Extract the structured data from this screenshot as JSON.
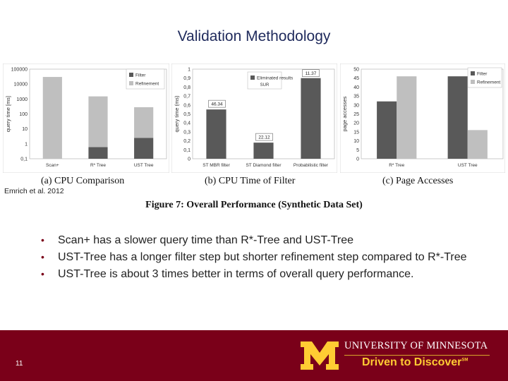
{
  "slide": {
    "title": "Validation Methodology",
    "credit": "Emrich et al. 2012",
    "page_number": "11",
    "bullets": [
      "Scan+ has a slower query time than R*-Tree and UST-Tree",
      "UST-Tree has a longer filter step but shorter refinement step compared to R*-Tree",
      "UST-Tree is about 3 times better in terms of overall query performance."
    ],
    "bullet_glyph": "•"
  },
  "figure": {
    "caption": "Figure 7: Overall Performance (Synthetic Data Set)",
    "sub_captions": [
      "(a) CPU Comparison",
      "(b) CPU Time of Filter",
      "(c) Page Accesses"
    ]
  },
  "footer": {
    "university": "UNIVERSITY OF MINNESOTA",
    "tagline": "Driven to Discover",
    "tagline_mark": "SM",
    "colors": {
      "maroon": "#7a0019",
      "gold": "#ffcc33"
    }
  },
  "chart_data": [
    {
      "type": "bar",
      "stacked": true,
      "log_scale": true,
      "ylabel": "query time [ms]",
      "ylim": [
        0.1,
        100000
      ],
      "y_ticks": [
        "100000",
        "10000",
        "1000",
        "100",
        "10",
        "1",
        "0,1"
      ],
      "categories": [
        "Scan+",
        "R* Tree",
        "UST Tree"
      ],
      "legend_position": "top-right",
      "series": [
        {
          "name": "Filter",
          "color": "#595959",
          "values": [
            0.1,
            0.6,
            2.5
          ]
        },
        {
          "name": "Refinement",
          "color": "#bfbfbf",
          "values": [
            30000,
            1500,
            280
          ]
        }
      ]
    },
    {
      "type": "bar",
      "ylabel": "query time (ms)",
      "ylim": [
        0,
        1
      ],
      "y_ticks": [
        "1",
        "0,9",
        "0,8",
        "0,7",
        "0,6",
        "0,5",
        "0,4",
        "0,3",
        "0,2",
        "0,1",
        "0"
      ],
      "categories": [
        "ST MBR filter",
        "ST Diamond filter",
        "Probabilistic filter"
      ],
      "legend_position": "top",
      "series": [
        {
          "name": "Eliminated results",
          "legend_sub": "SUR",
          "color": "#595959",
          "values": [
            0.55,
            0.18,
            0.9
          ]
        }
      ],
      "data_labels": [
        "46.34",
        "22.12",
        "11.37"
      ]
    },
    {
      "type": "bar",
      "ylabel": "page accesses",
      "ylim": [
        0,
        50
      ],
      "y_ticks": [
        "50",
        "45",
        "40",
        "35",
        "30",
        "25",
        "20",
        "15",
        "10",
        "5",
        "0"
      ],
      "categories": [
        "R* Tree",
        "UST Tree"
      ],
      "legend_position": "top-right",
      "series": [
        {
          "name": "Filter",
          "color": "#595959",
          "values": [
            32,
            46
          ]
        },
        {
          "name": "Refinement",
          "color": "#bfbfbf",
          "values": [
            46,
            16
          ]
        }
      ]
    }
  ]
}
